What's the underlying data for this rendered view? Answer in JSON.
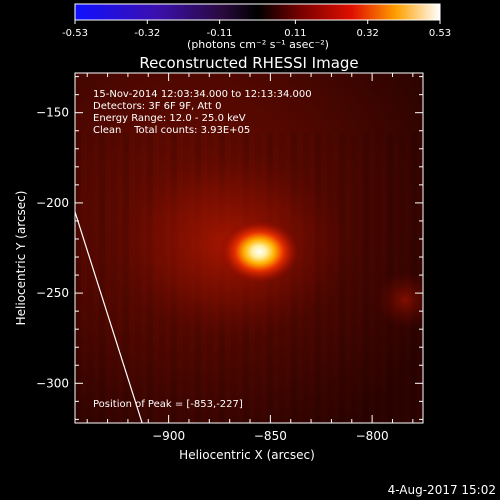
{
  "colorbar": {
    "tick_labels": [
      "-0.53",
      "-0.32",
      "-0.11",
      "0.11",
      "0.32",
      "0.53"
    ],
    "tick_values": [
      -0.53,
      -0.32,
      -0.11,
      0.11,
      0.32,
      0.53
    ],
    "units": "(photons cm⁻² s⁻¹ asec⁻²)"
  },
  "plot": {
    "title": "Reconstructed RHESSI Image",
    "info_lines": [
      "15-Nov-2014 12:03:34.000 to 12:13:34.000",
      "Detectors: 3F 6F 9F, Att 0",
      "Energy Range: 12.0 - 25.0 keV",
      "Clean    Total counts: 3.93E+05"
    ],
    "peak_label": "Position of Peak = [-853,-227]"
  },
  "footer": {
    "date": "4-Aug-2017 15:02"
  },
  "chart_data": {
    "type": "heatmap",
    "title": "Reconstructed RHESSI Image",
    "xlabel": "Heliocentric X (arcsec)",
    "ylabel": "Heliocentric Y (arcsec)",
    "xlim": [
      -946,
      -775
    ],
    "ylim": [
      -322,
      -128
    ],
    "x_ticks": [
      -900,
      -850,
      -800
    ],
    "y_ticks": [
      -150,
      -200,
      -250,
      -300
    ],
    "x_tick_labels": [
      "−900",
      "−850",
      "−800"
    ],
    "y_tick_labels": [
      "−150",
      "−200",
      "−250",
      "−300"
    ],
    "colorbar_range": [
      -0.53,
      0.53
    ],
    "peak": {
      "x": -853,
      "y": -227,
      "value": 0.53
    },
    "limb_line": [
      [
        -946,
        -205
      ],
      [
        -913,
        -322
      ]
    ]
  }
}
